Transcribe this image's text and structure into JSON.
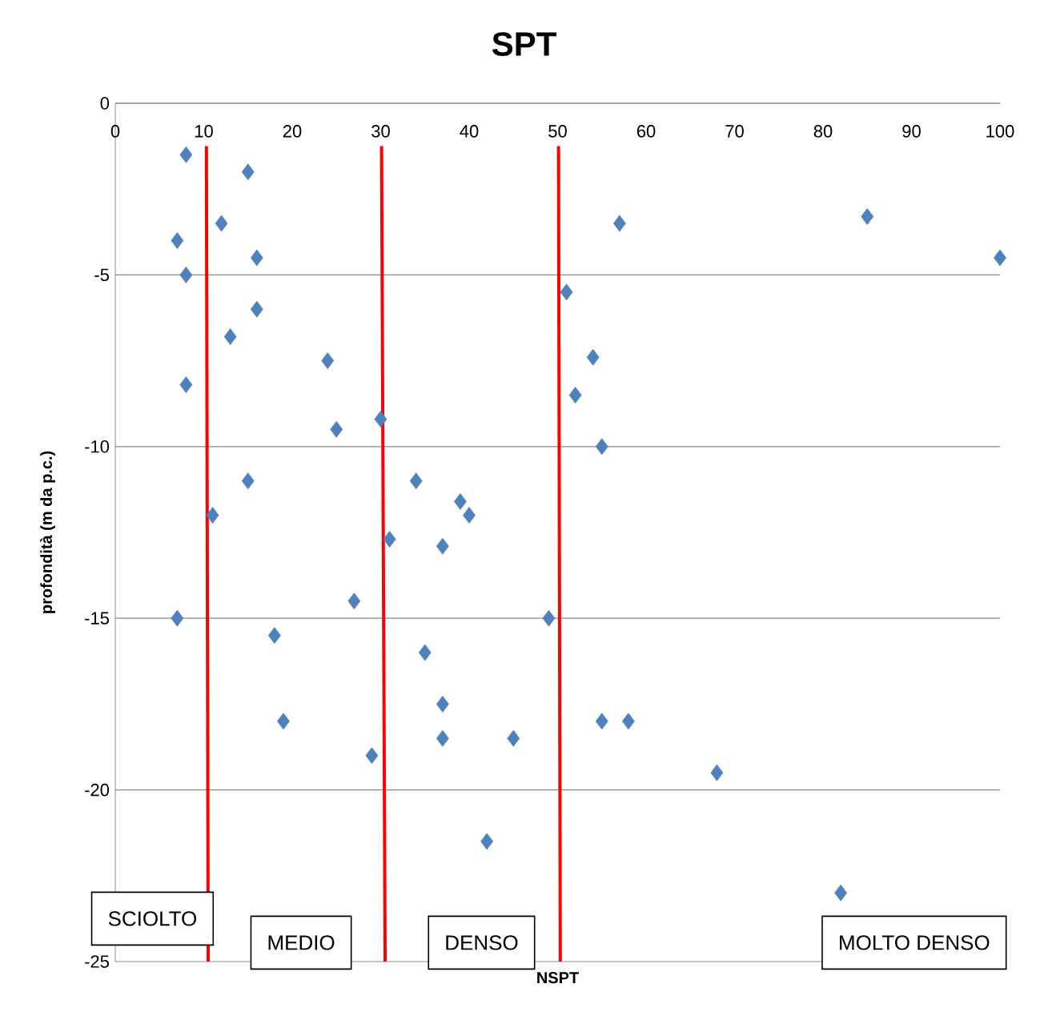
{
  "chart_data": {
    "type": "scatter",
    "title": "SPT",
    "xlabel": "NSPT",
    "ylabel": "profondità (m da p.c.)",
    "xlim": [
      0,
      100
    ],
    "xticks": [
      0,
      10,
      20,
      30,
      40,
      50,
      60,
      70,
      80,
      90,
      100
    ],
    "ylim": [
      -25,
      0
    ],
    "yticks": [
      -25,
      -20,
      -15,
      -10,
      -5,
      0
    ],
    "grid": "y",
    "series": [
      {
        "color": "#4f81bd",
        "marker": "diamond",
        "x": [
          8,
          15,
          12,
          7,
          16,
          8,
          16,
          13,
          24,
          8,
          30,
          25,
          15,
          11,
          34,
          39,
          40,
          31,
          37,
          7,
          27,
          49,
          18,
          35,
          37,
          19,
          37,
          45,
          29,
          42,
          68,
          82,
          55,
          58,
          55,
          52,
          54,
          51,
          57,
          85,
          100
        ],
        "values": [
          -1.5,
          -2,
          -3.5,
          -4,
          -4.5,
          -5,
          -6,
          -6.8,
          -7.5,
          -8.2,
          -9.2,
          -9.5,
          -11,
          -12,
          -11,
          -11.6,
          -12,
          -12.7,
          -12.9,
          -15,
          -14.5,
          -15,
          -15.5,
          -16,
          -17.5,
          -18,
          -18.5,
          -18.5,
          -19,
          -21.5,
          -19.5,
          -23,
          -18,
          -18,
          -10,
          -8.5,
          -7.4,
          -5.5,
          -3.5,
          -3.3,
          -4.5
        ]
      },
      {
        "type": "line",
        "marker": "none",
        "color": "#ff0000",
        "x": [
          10.3,
          10.5
        ],
        "values": [
          -1.25,
          -25
        ]
      },
      {
        "type": "line",
        "marker": "none",
        "color": "#ff0000",
        "x": [
          30.1,
          30.5
        ],
        "values": [
          -1.25,
          -25
        ]
      },
      {
        "type": "line",
        "marker": "none",
        "color": "#ff0000",
        "x": [
          50.1,
          50.3
        ],
        "values": [
          -1.25,
          -25
        ]
      }
    ],
    "annotations": [
      "SCIOLTO",
      "MEDIO",
      "DENSO",
      "MOLTO DENSO"
    ]
  }
}
